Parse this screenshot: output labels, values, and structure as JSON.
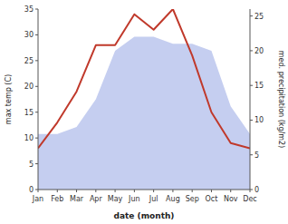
{
  "chart_data": {
    "type": "line",
    "xlabel": "date (month)",
    "ylabel": "max temp (C)",
    "y2label": "med. precipitation (kg/m2)",
    "categories": [
      "Jan",
      "Feb",
      "Mar",
      "Apr",
      "May",
      "Jun",
      "Jul",
      "Aug",
      "Sep",
      "Oct",
      "Nov",
      "Dec"
    ],
    "series": [
      {
        "type": "area",
        "axis": "y2",
        "color": "#c5cef0",
        "values": [
          8,
          8,
          9,
          13,
          20,
          22,
          22,
          21,
          21,
          20,
          12,
          8
        ]
      },
      {
        "type": "line",
        "color": "#c0392b",
        "values": [
          8,
          13,
          19,
          28,
          28,
          34,
          31,
          35,
          26,
          15,
          9,
          8
        ]
      }
    ],
    "ylim": [
      0,
      35
    ],
    "yticks": [
      0,
      5,
      10,
      15,
      20,
      25,
      30,
      35
    ],
    "y2lim": [
      0,
      26
    ],
    "y2ticks": [
      0,
      5,
      10,
      15,
      20,
      25
    ],
    "grid": false
  }
}
